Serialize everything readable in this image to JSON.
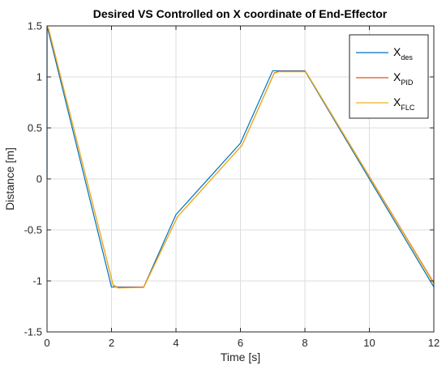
{
  "chart_data": {
    "type": "line",
    "title": "Desired VS Controlled on X coordinate of End-Effector",
    "xlabel": "Time [s]",
    "ylabel": "Distance [m]",
    "xlim": [
      0,
      12
    ],
    "ylim": [
      -1.5,
      1.5
    ],
    "xticks": [
      0,
      2,
      4,
      6,
      8,
      10,
      12
    ],
    "yticks": [
      -1.5,
      -1,
      -0.5,
      0,
      0.5,
      1,
      1.5
    ],
    "xtick_labels": [
      "0",
      "2",
      "4",
      "6",
      "8",
      "10",
      "12"
    ],
    "ytick_labels": [
      "-1.5",
      "-1",
      "-0.5",
      "0",
      "0.5",
      "1",
      "1.5"
    ],
    "grid": true,
    "legend_position": "top-right",
    "series": [
      {
        "name": "X_des",
        "legend_base": "X",
        "legend_sub": "des",
        "color": "#0072BD",
        "x": [
          0,
          0,
          2,
          3,
          4,
          6,
          7,
          8,
          12
        ],
        "y": [
          0,
          1.5,
          -1.06,
          -1.06,
          -0.35,
          0.35,
          1.06,
          1.06,
          -1.06
        ]
      },
      {
        "name": "X_PID",
        "legend_base": "X",
        "legend_sub": "PID",
        "color": "#D95319",
        "x": [
          0,
          0.05,
          2.05,
          2.2,
          3.0,
          4.05,
          6.05,
          7.05,
          7.2,
          8.0,
          8.05,
          12
        ],
        "y": [
          1.5,
          1.47,
          -1.04,
          -1.065,
          -1.06,
          -0.37,
          0.33,
          1.04,
          1.055,
          1.055,
          1.04,
          -1.02
        ]
      },
      {
        "name": "X_FLC",
        "legend_base": "X",
        "legend_sub": "FLC",
        "color": "#EDB120",
        "x": [
          0,
          0.05,
          2.05,
          2.2,
          3.0,
          4.05,
          6.05,
          7.05,
          7.2,
          8.0,
          8.05,
          12
        ],
        "y": [
          1.5,
          1.47,
          -1.045,
          -1.07,
          -1.065,
          -0.37,
          0.33,
          1.035,
          1.05,
          1.05,
          1.04,
          -1.03
        ]
      }
    ]
  }
}
